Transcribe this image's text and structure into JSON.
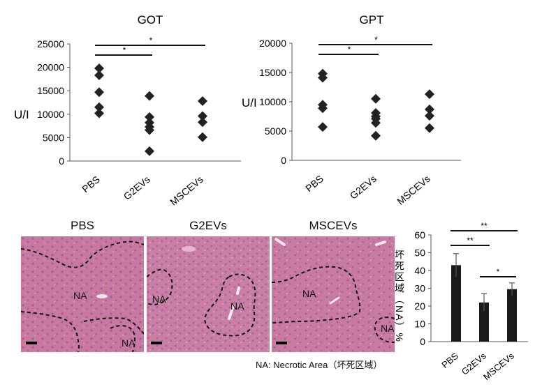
{
  "chart_data": [
    {
      "type": "scatter",
      "title": "GOT",
      "ylabel": "U/I",
      "categories": [
        "PBS",
        "G2EVs",
        "MSCEVs"
      ],
      "ylim": [
        0,
        25000
      ],
      "yticks": [
        "0",
        "5000",
        "10000",
        "15000",
        "20000",
        "25000"
      ],
      "yticks_values": [
        0,
        5000,
        10000,
        15000,
        20000,
        25000
      ],
      "points": [
        [
          19800,
          18300,
          14700,
          11500,
          10200
        ],
        [
          13900,
          9400,
          8200,
          7300,
          6600,
          2100
        ],
        [
          12800,
          9600,
          8300,
          5100
        ]
      ],
      "significance": [
        {
          "from": 0,
          "to": 1,
          "label": "*"
        },
        {
          "from": 0,
          "to": 2,
          "label": "*"
        }
      ],
      "marker": "diamond",
      "marker_color": "#222222"
    },
    {
      "type": "scatter",
      "title": "GPT",
      "ylabel": "U/I",
      "categories": [
        "PBS",
        "G2EVs",
        "MSCEVs"
      ],
      "ylim": [
        0,
        20000
      ],
      "yticks": [
        "0",
        "5000",
        "10000",
        "15000",
        "20000"
      ],
      "yticks_values": [
        0,
        5000,
        10000,
        15000,
        20000
      ],
      "points": [
        [
          14800,
          14100,
          9500,
          8900,
          5700
        ],
        [
          10500,
          8100,
          7500,
          7100,
          6400,
          4200
        ],
        [
          11300,
          8700,
          7600,
          5500
        ]
      ],
      "significance": [
        {
          "from": 0,
          "to": 1,
          "label": "*"
        },
        {
          "from": 0,
          "to": 2,
          "label": "*"
        }
      ],
      "marker": "diamond",
      "marker_color": "#222222"
    },
    {
      "type": "bar",
      "ylabel": "坏死区域（NA）%",
      "categories": [
        "PBS",
        "G2EVs",
        "MSCEVs"
      ],
      "values": [
        43,
        22,
        29.5
      ],
      "errors": [
        6.5,
        5,
        3.5
      ],
      "ylim": [
        0,
        60
      ],
      "yticks": [
        "0",
        "10",
        "20",
        "30",
        "40",
        "50",
        "60"
      ],
      "yticks_values": [
        0,
        10,
        20,
        30,
        40,
        50,
        60
      ],
      "significance": [
        {
          "from": 0,
          "to": 1,
          "label": "**"
        },
        {
          "from": 0,
          "to": 2,
          "label": "**"
        },
        {
          "from": 1,
          "to": 2,
          "label": "*"
        }
      ],
      "bar_color": "#1a1a1a"
    }
  ],
  "histology": {
    "panels": [
      {
        "title": "PBS",
        "labels": [
          "NA",
          "NA"
        ]
      },
      {
        "title": "G2EVs",
        "labels": [
          "NA",
          "NA"
        ]
      },
      {
        "title": "MSCEVs",
        "labels": [
          "NA",
          "NA"
        ]
      }
    ],
    "stain_color": "#c6789f",
    "nuclei_color": "#7d5d9e"
  },
  "footnote": "NA: Necrotic Area（坏死区域）"
}
